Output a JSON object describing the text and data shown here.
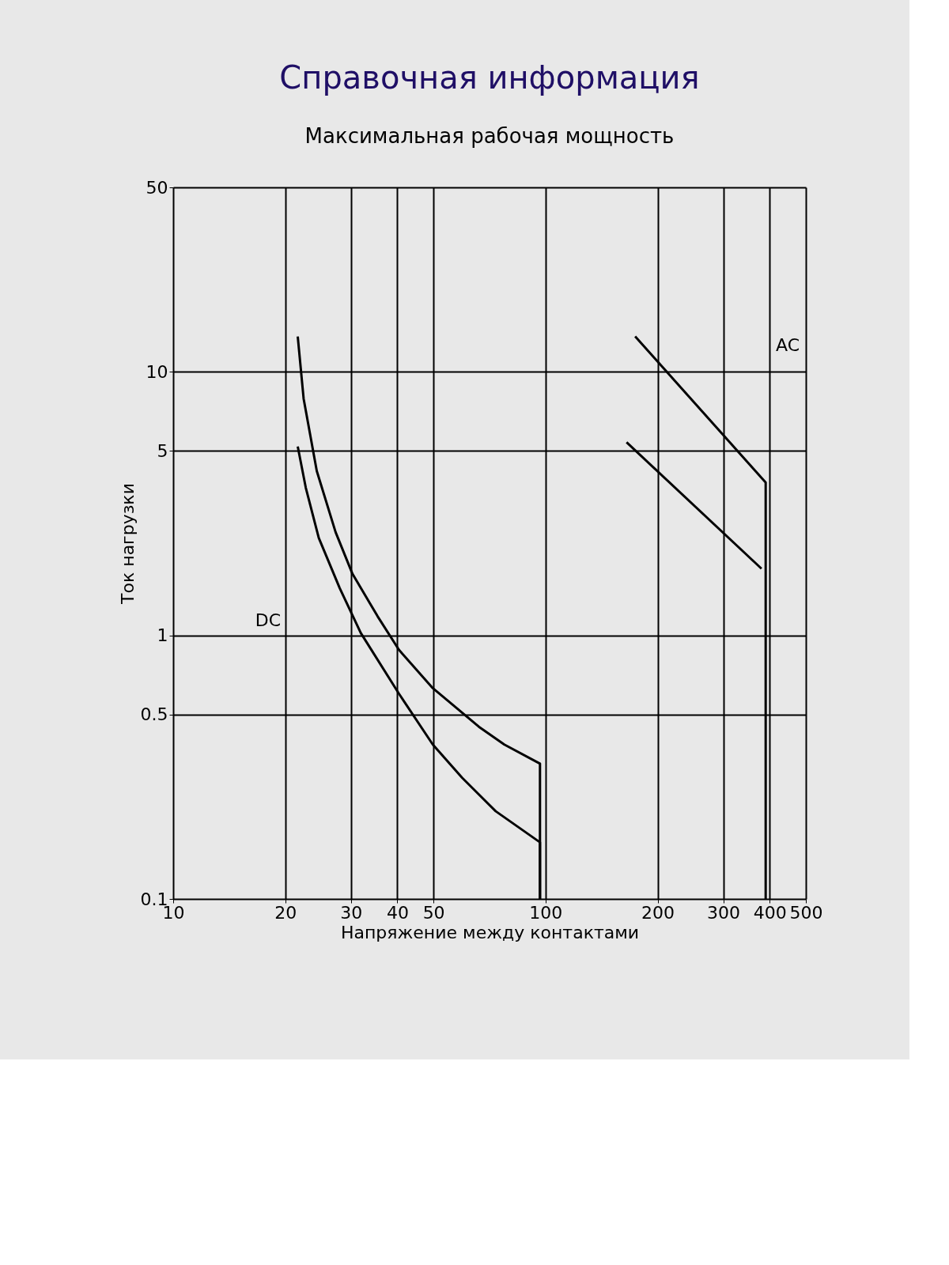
{
  "chart_data": {
    "type": "line",
    "title": "Справочная информация",
    "subtitle": "Максимальная рабочая мощность",
    "xlabel": "Напряжение между контактами",
    "ylabel": "Ток нагрузки",
    "log": "xy",
    "grid": true,
    "marker": "none",
    "line_style": "solid",
    "xlim": [
      10,
      500
    ],
    "xticks": [
      10,
      20,
      30,
      40,
      50,
      100,
      200,
      300,
      400,
      500
    ],
    "ylim": [
      0.1,
      50
    ],
    "yticks": [
      0.1,
      0.5,
      1,
      5,
      10,
      50
    ],
    "series": [
      {
        "color": "#000000",
        "x": [
          21.6,
          22.4,
          24.3,
          27.3,
          30.3,
          35.4,
          40.4,
          49.8,
          66.2,
          77.5,
          96.6,
          96.6
        ],
        "values": [
          13.6,
          7.9,
          4.2,
          2.46,
          1.71,
          1.18,
          0.88,
          0.63,
          0.45,
          0.385,
          0.326,
          0.1
        ]
      },
      {
        "color": "#000000",
        "x": [
          21.6,
          22.7,
          24.6,
          28.0,
          31.9,
          40.4,
          49.8,
          59.7,
          73.5,
          96.6,
          96.6
        ],
        "values": [
          5.2,
          3.63,
          2.34,
          1.51,
          1.02,
          0.6,
          0.385,
          0.288,
          0.215,
          0.164,
          0.1
        ]
      },
      {
        "color": "#000000",
        "x": [
          174,
          390,
          390
        ],
        "values": [
          13.6,
          3.8,
          0.1
        ]
      },
      {
        "color": "#000000",
        "x": [
          165,
          380
        ],
        "values": [
          5.4,
          1.79
        ]
      }
    ],
    "annotations": [
      "DC",
      "AC"
    ]
  }
}
